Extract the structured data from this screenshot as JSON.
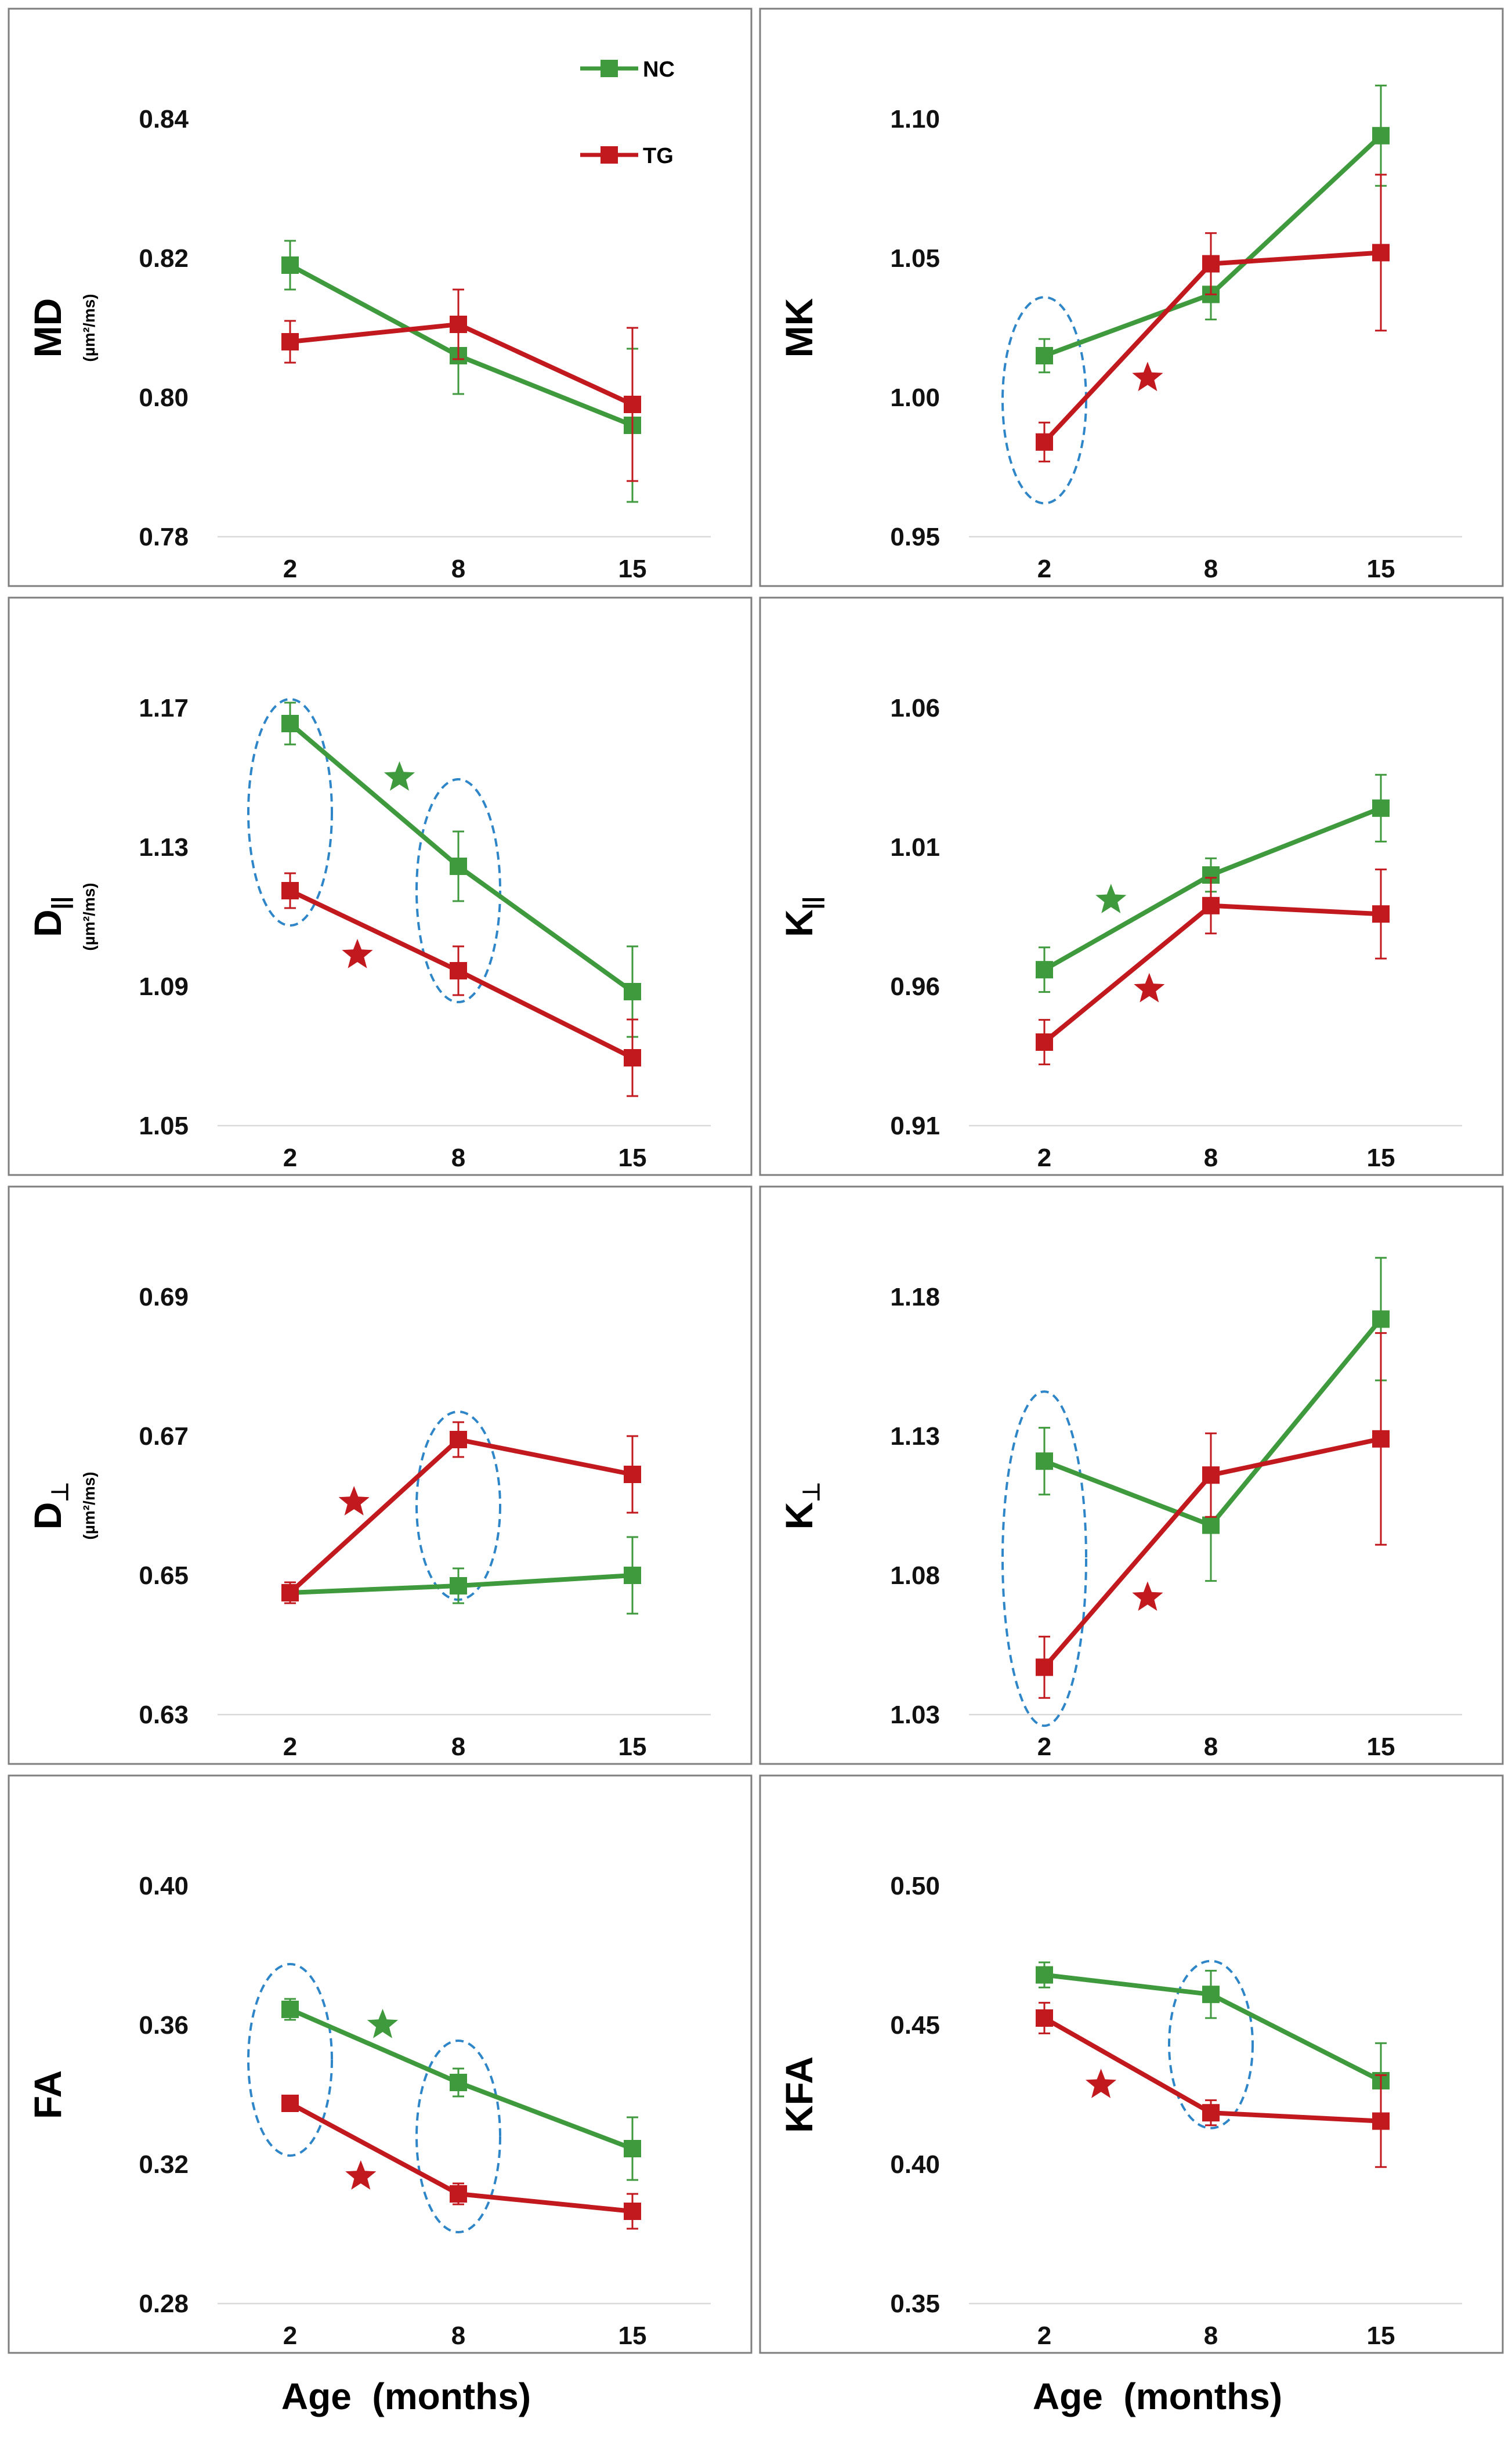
{
  "figure": {
    "xlabel": "Age  (months)",
    "legend": [
      {
        "name": "NC",
        "color": "#3f9a3d"
      },
      {
        "name": "TG",
        "color": "#c1191e"
      }
    ]
  },
  "chart_data": [
    {
      "type": "line",
      "id": "MD",
      "ylabel": "MD",
      "unit": "(µm²/ms)",
      "categories": [
        "2",
        "8",
        "15"
      ],
      "ylim": [
        0.78,
        0.84
      ],
      "yticks": [
        "0.78",
        "0.80",
        "0.82",
        "0.84"
      ],
      "series": [
        {
          "name": "NC",
          "color": "#3f9a3d",
          "values": [
            0.819,
            0.806,
            0.796
          ],
          "err": [
            0.0035,
            0.0055,
            0.011
          ]
        },
        {
          "name": "TG",
          "color": "#c1191e",
          "values": [
            0.808,
            0.8105,
            0.799
          ],
          "err": [
            0.003,
            0.005,
            0.011
          ]
        }
      ],
      "ellipses": [],
      "stars": []
    },
    {
      "type": "line",
      "id": "MK",
      "ylabel": "MK",
      "unit": "",
      "categories": [
        "2",
        "8",
        "15"
      ],
      "ylim": [
        0.95,
        1.1
      ],
      "yticks": [
        "0.95",
        "1.00",
        "1.05",
        "1.10"
      ],
      "series": [
        {
          "name": "NC",
          "color": "#3f9a3d",
          "values": [
            1.015,
            1.037,
            1.094
          ],
          "err": [
            0.006,
            0.009,
            0.018
          ]
        },
        {
          "name": "TG",
          "color": "#c1191e",
          "values": [
            0.984,
            1.048,
            1.052
          ],
          "err": [
            0.007,
            0.011,
            0.028
          ]
        }
      ],
      "ellipses": [
        {
          "cat": 0,
          "ymin": 0.962,
          "ymax": 1.036
        }
      ],
      "stars": [
        {
          "x": 0.62,
          "y": 1.007,
          "color": "#c1191e"
        }
      ]
    },
    {
      "type": "line",
      "id": "Dpar",
      "ylabel": "D",
      "sub": "||",
      "unit": "(µm²/ms)",
      "categories": [
        "2",
        "8",
        "15"
      ],
      "ylim": [
        1.05,
        1.17
      ],
      "yticks": [
        "1.05",
        "1.09",
        "1.13",
        "1.17"
      ],
      "series": [
        {
          "name": "NC",
          "color": "#3f9a3d",
          "values": [
            1.1655,
            1.1245,
            1.0885
          ],
          "err": [
            0.006,
            0.01,
            0.013
          ]
        },
        {
          "name": "TG",
          "color": "#c1191e",
          "values": [
            1.1175,
            1.0945,
            1.0695
          ],
          "err": [
            0.005,
            0.007,
            0.011
          ]
        }
      ],
      "ellipses": [
        {
          "cat": 0,
          "ymin": 1.1075,
          "ymax": 1.1725
        },
        {
          "cat": 1,
          "ymin": 1.0855,
          "ymax": 1.1495
        }
      ],
      "stars": [
        {
          "x": 0.65,
          "y": 1.15,
          "color": "#3f9a3d"
        },
        {
          "x": 0.4,
          "y": 1.099,
          "color": "#c1191e"
        }
      ]
    },
    {
      "type": "line",
      "id": "Kpar",
      "ylabel": "K",
      "sub": "||",
      "unit": "",
      "categories": [
        "2",
        "8",
        "15"
      ],
      "ylim": [
        0.91,
        1.06
      ],
      "yticks": [
        "0.91",
        "0.96",
        "1.01",
        "1.06"
      ],
      "series": [
        {
          "name": "NC",
          "color": "#3f9a3d",
          "values": [
            0.966,
            1.0,
            1.024
          ],
          "err": [
            0.008,
            0.006,
            0.012
          ]
        },
        {
          "name": "TG",
          "color": "#c1191e",
          "values": [
            0.94,
            0.989,
            0.986
          ],
          "err": [
            0.008,
            0.01,
            0.016
          ]
        }
      ],
      "ellipses": [],
      "stars": [
        {
          "x": 0.4,
          "y": 0.991,
          "color": "#3f9a3d"
        },
        {
          "x": 0.63,
          "y": 0.959,
          "color": "#c1191e"
        }
      ]
    },
    {
      "type": "line",
      "id": "Dperp",
      "ylabel": "D",
      "sub": "⊥",
      "unit": "(µm²/ms)",
      "categories": [
        "2",
        "8",
        "15"
      ],
      "ylim": [
        0.63,
        0.69
      ],
      "yticks": [
        "0.63",
        "0.65",
        "0.67",
        "0.69"
      ],
      "series": [
        {
          "name": "NC",
          "color": "#3f9a3d",
          "values": [
            0.6475,
            0.6485,
            0.65
          ],
          "err": [
            0.001,
            0.0025,
            0.0055
          ]
        },
        {
          "name": "TG",
          "color": "#c1191e",
          "values": [
            0.6475,
            0.6695,
            0.6645
          ],
          "err": [
            0.0015,
            0.0025,
            0.0055
          ]
        }
      ],
      "ellipses": [
        {
          "cat": 1,
          "ymin": 0.6465,
          "ymax": 0.6735
        }
      ],
      "stars": [
        {
          "x": 0.38,
          "y": 0.6605,
          "color": "#c1191e"
        }
      ]
    },
    {
      "type": "line",
      "id": "Kperp",
      "ylabel": "K",
      "sub": "⊥",
      "unit": "",
      "categories": [
        "2",
        "8",
        "15"
      ],
      "ylim": [
        1.03,
        1.18
      ],
      "yticks": [
        "1.03",
        "1.08",
        "1.13",
        "1.18"
      ],
      "series": [
        {
          "name": "NC",
          "color": "#3f9a3d",
          "values": [
            1.121,
            1.098,
            1.172
          ],
          "err": [
            0.012,
            0.02,
            0.022
          ]
        },
        {
          "name": "TG",
          "color": "#c1191e",
          "values": [
            1.047,
            1.116,
            1.129
          ],
          "err": [
            0.011,
            0.015,
            0.038
          ]
        }
      ],
      "ellipses": [
        {
          "cat": 0,
          "ymin": 1.026,
          "ymax": 1.146
        }
      ],
      "stars": [
        {
          "x": 0.62,
          "y": 1.072,
          "color": "#c1191e"
        }
      ]
    },
    {
      "type": "line",
      "id": "FA",
      "ylabel": "FA",
      "unit": "",
      "categories": [
        "2",
        "8",
        "15"
      ],
      "ylim": [
        0.28,
        0.4
      ],
      "yticks": [
        "0.28",
        "0.32",
        "0.36",
        "0.40"
      ],
      "series": [
        {
          "name": "NC",
          "color": "#3f9a3d",
          "values": [
            0.3645,
            0.3435,
            0.3245
          ],
          "err": [
            0.003,
            0.004,
            0.009
          ]
        },
        {
          "name": "TG",
          "color": "#c1191e",
          "values": [
            0.3375,
            0.3115,
            0.3065
          ],
          "err": [
            0.002,
            0.003,
            0.005
          ]
        }
      ],
      "ellipses": [
        {
          "cat": 0,
          "ymin": 0.3225,
          "ymax": 0.3775
        },
        {
          "cat": 1,
          "ymin": 0.3005,
          "ymax": 0.3555
        }
      ],
      "stars": [
        {
          "x": 0.55,
          "y": 0.36,
          "color": "#3f9a3d"
        },
        {
          "x": 0.42,
          "y": 0.3165,
          "color": "#c1191e"
        }
      ]
    },
    {
      "type": "line",
      "id": "KFA",
      "ylabel": "KFA",
      "unit": "",
      "categories": [
        "2",
        "8",
        "15"
      ],
      "ylim": [
        0.35,
        0.5
      ],
      "yticks": [
        "0.35",
        "0.40",
        "0.45",
        "0.50"
      ],
      "series": [
        {
          "name": "NC",
          "color": "#3f9a3d",
          "values": [
            0.468,
            0.461,
            0.43
          ],
          "err": [
            0.0045,
            0.0085,
            0.0135
          ]
        },
        {
          "name": "TG",
          "color": "#c1191e",
          "values": [
            0.4525,
            0.4185,
            0.4155
          ],
          "err": [
            0.0055,
            0.0045,
            0.0165
          ]
        }
      ],
      "ellipses": [
        {
          "cat": 1,
          "ymin": 0.413,
          "ymax": 0.473
        }
      ],
      "stars": [
        {
          "x": 0.34,
          "y": 0.4285,
          "color": "#c1191e"
        }
      ]
    }
  ]
}
